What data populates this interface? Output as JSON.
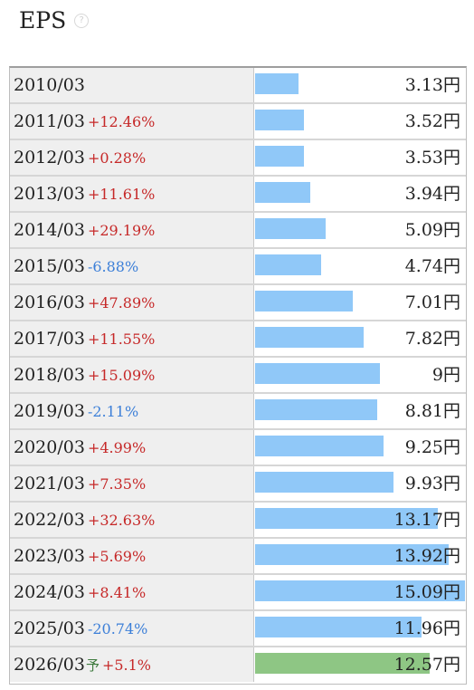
{
  "header": {
    "title": "EPS",
    "help_icon": "question-circle-icon"
  },
  "chart_data": {
    "type": "bar",
    "orientation": "horizontal",
    "unit": "円",
    "colors": {
      "actual": "#90c8f8",
      "forecast": "#8ec684",
      "up": "#c62828",
      "down": "#3c7fd8"
    },
    "rows": [
      {
        "year": "2010/03",
        "forecast_mark": "",
        "change": "",
        "direction": "none",
        "value": 3.13,
        "value_label": "3.13円"
      },
      {
        "year": "2011/03",
        "forecast_mark": "",
        "change": "+12.46%",
        "direction": "up",
        "value": 3.52,
        "value_label": "3.52円"
      },
      {
        "year": "2012/03",
        "forecast_mark": "",
        "change": "+0.28%",
        "direction": "up",
        "value": 3.53,
        "value_label": "3.53円"
      },
      {
        "year": "2013/03",
        "forecast_mark": "",
        "change": "+11.61%",
        "direction": "up",
        "value": 3.94,
        "value_label": "3.94円"
      },
      {
        "year": "2014/03",
        "forecast_mark": "",
        "change": "+29.19%",
        "direction": "up",
        "value": 5.09,
        "value_label": "5.09円"
      },
      {
        "year": "2015/03",
        "forecast_mark": "",
        "change": "-6.88%",
        "direction": "down",
        "value": 4.74,
        "value_label": "4.74円"
      },
      {
        "year": "2016/03",
        "forecast_mark": "",
        "change": "+47.89%",
        "direction": "up",
        "value": 7.01,
        "value_label": "7.01円"
      },
      {
        "year": "2017/03",
        "forecast_mark": "",
        "change": "+11.55%",
        "direction": "up",
        "value": 7.82,
        "value_label": "7.82円"
      },
      {
        "year": "2018/03",
        "forecast_mark": "",
        "change": "+15.09%",
        "direction": "up",
        "value": 9,
        "value_label": "9円"
      },
      {
        "year": "2019/03",
        "forecast_mark": "",
        "change": "-2.11%",
        "direction": "down",
        "value": 8.81,
        "value_label": "8.81円"
      },
      {
        "year": "2020/03",
        "forecast_mark": "",
        "change": "+4.99%",
        "direction": "up",
        "value": 9.25,
        "value_label": "9.25円"
      },
      {
        "year": "2021/03",
        "forecast_mark": "",
        "change": "+7.35%",
        "direction": "up",
        "value": 9.93,
        "value_label": "9.93円"
      },
      {
        "year": "2022/03",
        "forecast_mark": "",
        "change": "+32.63%",
        "direction": "up",
        "value": 13.17,
        "value_label": "13.17円"
      },
      {
        "year": "2023/03",
        "forecast_mark": "",
        "change": "+5.69%",
        "direction": "up",
        "value": 13.92,
        "value_label": "13.92円"
      },
      {
        "year": "2024/03",
        "forecast_mark": "",
        "change": "+8.41%",
        "direction": "up",
        "value": 15.09,
        "value_label": "15.09円"
      },
      {
        "year": "2025/03",
        "forecast_mark": "",
        "change": "-20.74%",
        "direction": "down",
        "value": 11.96,
        "value_label": "11.96円"
      },
      {
        "year": "2026/03",
        "forecast_mark": "予",
        "change": "+5.1%",
        "direction": "up",
        "value": 12.57,
        "value_label": "12.57円",
        "forecast": true
      }
    ]
  }
}
